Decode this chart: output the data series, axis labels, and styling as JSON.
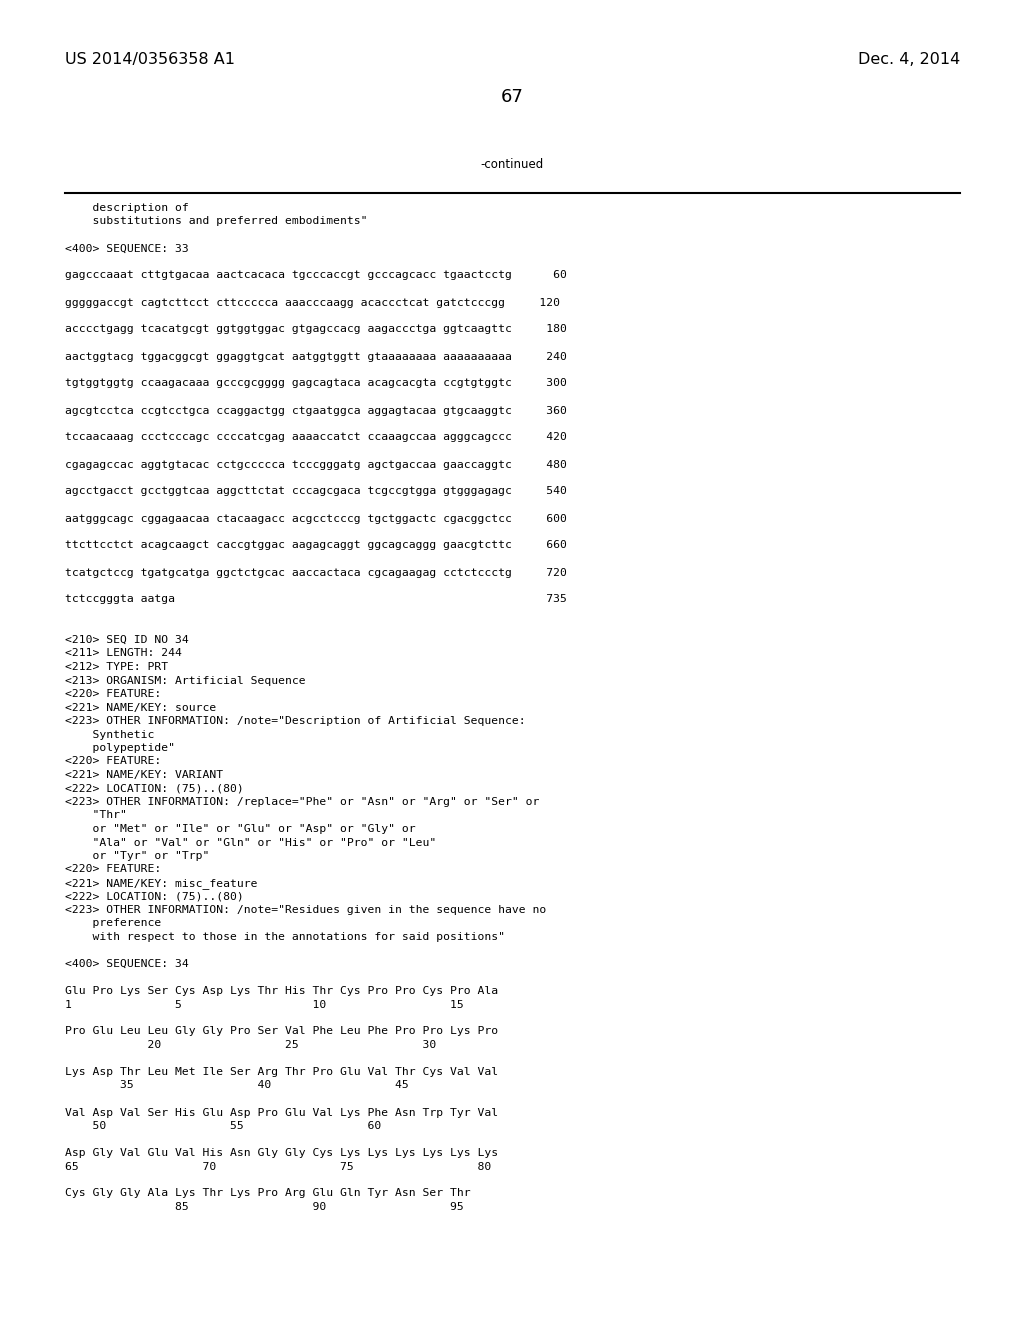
{
  "header_left": "US 2014/0356358 A1",
  "header_right": "Dec. 4, 2014",
  "page_number": "67",
  "continued_text": "-continued",
  "background_color": "#ffffff",
  "text_color": "#000000",
  "font_size_header": 11.5,
  "font_size_page_num": 13,
  "font_size_body": 8.2,
  "font_size_continued": 8.5,
  "lines": [
    "    description of",
    "    substitutions and preferred embodiments\"",
    "",
    "<400> SEQUENCE: 33",
    "",
    "gagcccaaat cttgtgacaa aactcacaca tgcccaccgt gcccagcacc tgaactcctg      60",
    "",
    "gggggaccgt cagtcttcct cttccccca aaacccaagg acaccctcat gatctcccgg     120",
    "",
    "acccctgagg tcacatgcgt ggtggtggac gtgagccacg aagaccctga ggtcaagttc     180",
    "",
    "aactggtacg tggacggcgt ggaggtgcat aatggtggtt gtaaaaaaaa aaaaaaaaaa     240",
    "",
    "tgtggtggtg ccaagacaaa gcccgcgggg gagcagtaca acagcacgta ccgtgtggtc     300",
    "",
    "agcgtcctca ccgtcctgca ccaggactgg ctgaatggca aggagtacaa gtgcaaggtc     360",
    "",
    "tccaacaaag ccctcccagc ccccatcgag aaaaccatct ccaaagccaa agggcagccc     420",
    "",
    "cgagagccac aggtgtacac cctgccccca tcccgggatg agctgaccaa gaaccaggtc     480",
    "",
    "agcctgacct gcctggtcaa aggcttctat cccagcgaca tcgccgtgga gtgggagagc     540",
    "",
    "aatgggcagc cggagaacaa ctacaagacc acgcctcccg tgctggactc cgacggctcc     600",
    "",
    "ttcttcctct acagcaagct caccgtggac aagagcaggt ggcagcaggg gaacgtcttc     660",
    "",
    "tcatgctccg tgatgcatga ggctctgcac aaccactaca cgcagaagag cctctccctg     720",
    "",
    "tctccgggta aatga                                                      735",
    "",
    "",
    "<210> SEQ ID NO 34",
    "<211> LENGTH: 244",
    "<212> TYPE: PRT",
    "<213> ORGANISM: Artificial Sequence",
    "<220> FEATURE:",
    "<221> NAME/KEY: source",
    "<223> OTHER INFORMATION: /note=\"Description of Artificial Sequence:",
    "    Synthetic",
    "    polypeptide\"",
    "<220> FEATURE:",
    "<221> NAME/KEY: VARIANT",
    "<222> LOCATION: (75)..(80)",
    "<223> OTHER INFORMATION: /replace=\"Phe\" or \"Asn\" or \"Arg\" or \"Ser\" or",
    "    \"Thr\"",
    "    or \"Met\" or \"Ile\" or \"Glu\" or \"Asp\" or \"Gly\" or",
    "    \"Ala\" or \"Val\" or \"Gln\" or \"His\" or \"Pro\" or \"Leu\"",
    "    or \"Tyr\" or \"Trp\"",
    "<220> FEATURE:",
    "<221> NAME/KEY: misc_feature",
    "<222> LOCATION: (75)..(80)",
    "<223> OTHER INFORMATION: /note=\"Residues given in the sequence have no",
    "    preference",
    "    with respect to those in the annotations for said positions\"",
    "",
    "<400> SEQUENCE: 34",
    "",
    "Glu Pro Lys Ser Cys Asp Lys Thr His Thr Cys Pro Pro Cys Pro Ala",
    "1               5                   10                  15",
    "",
    "Pro Glu Leu Leu Gly Gly Pro Ser Val Phe Leu Phe Pro Pro Lys Pro",
    "            20                  25                  30",
    "",
    "Lys Asp Thr Leu Met Ile Ser Arg Thr Pro Glu Val Thr Cys Val Val",
    "        35                  40                  45",
    "",
    "Val Asp Val Ser His Glu Asp Pro Glu Val Lys Phe Asn Trp Tyr Val",
    "    50                  55                  60",
    "",
    "Asp Gly Val Glu Val His Asn Gly Gly Cys Lys Lys Lys Lys Lys Lys",
    "65                  70                  75                  80",
    "",
    "Cys Gly Gly Ala Lys Thr Lys Pro Arg Glu Gln Tyr Asn Ser Thr",
    "                85                  90                  95"
  ]
}
